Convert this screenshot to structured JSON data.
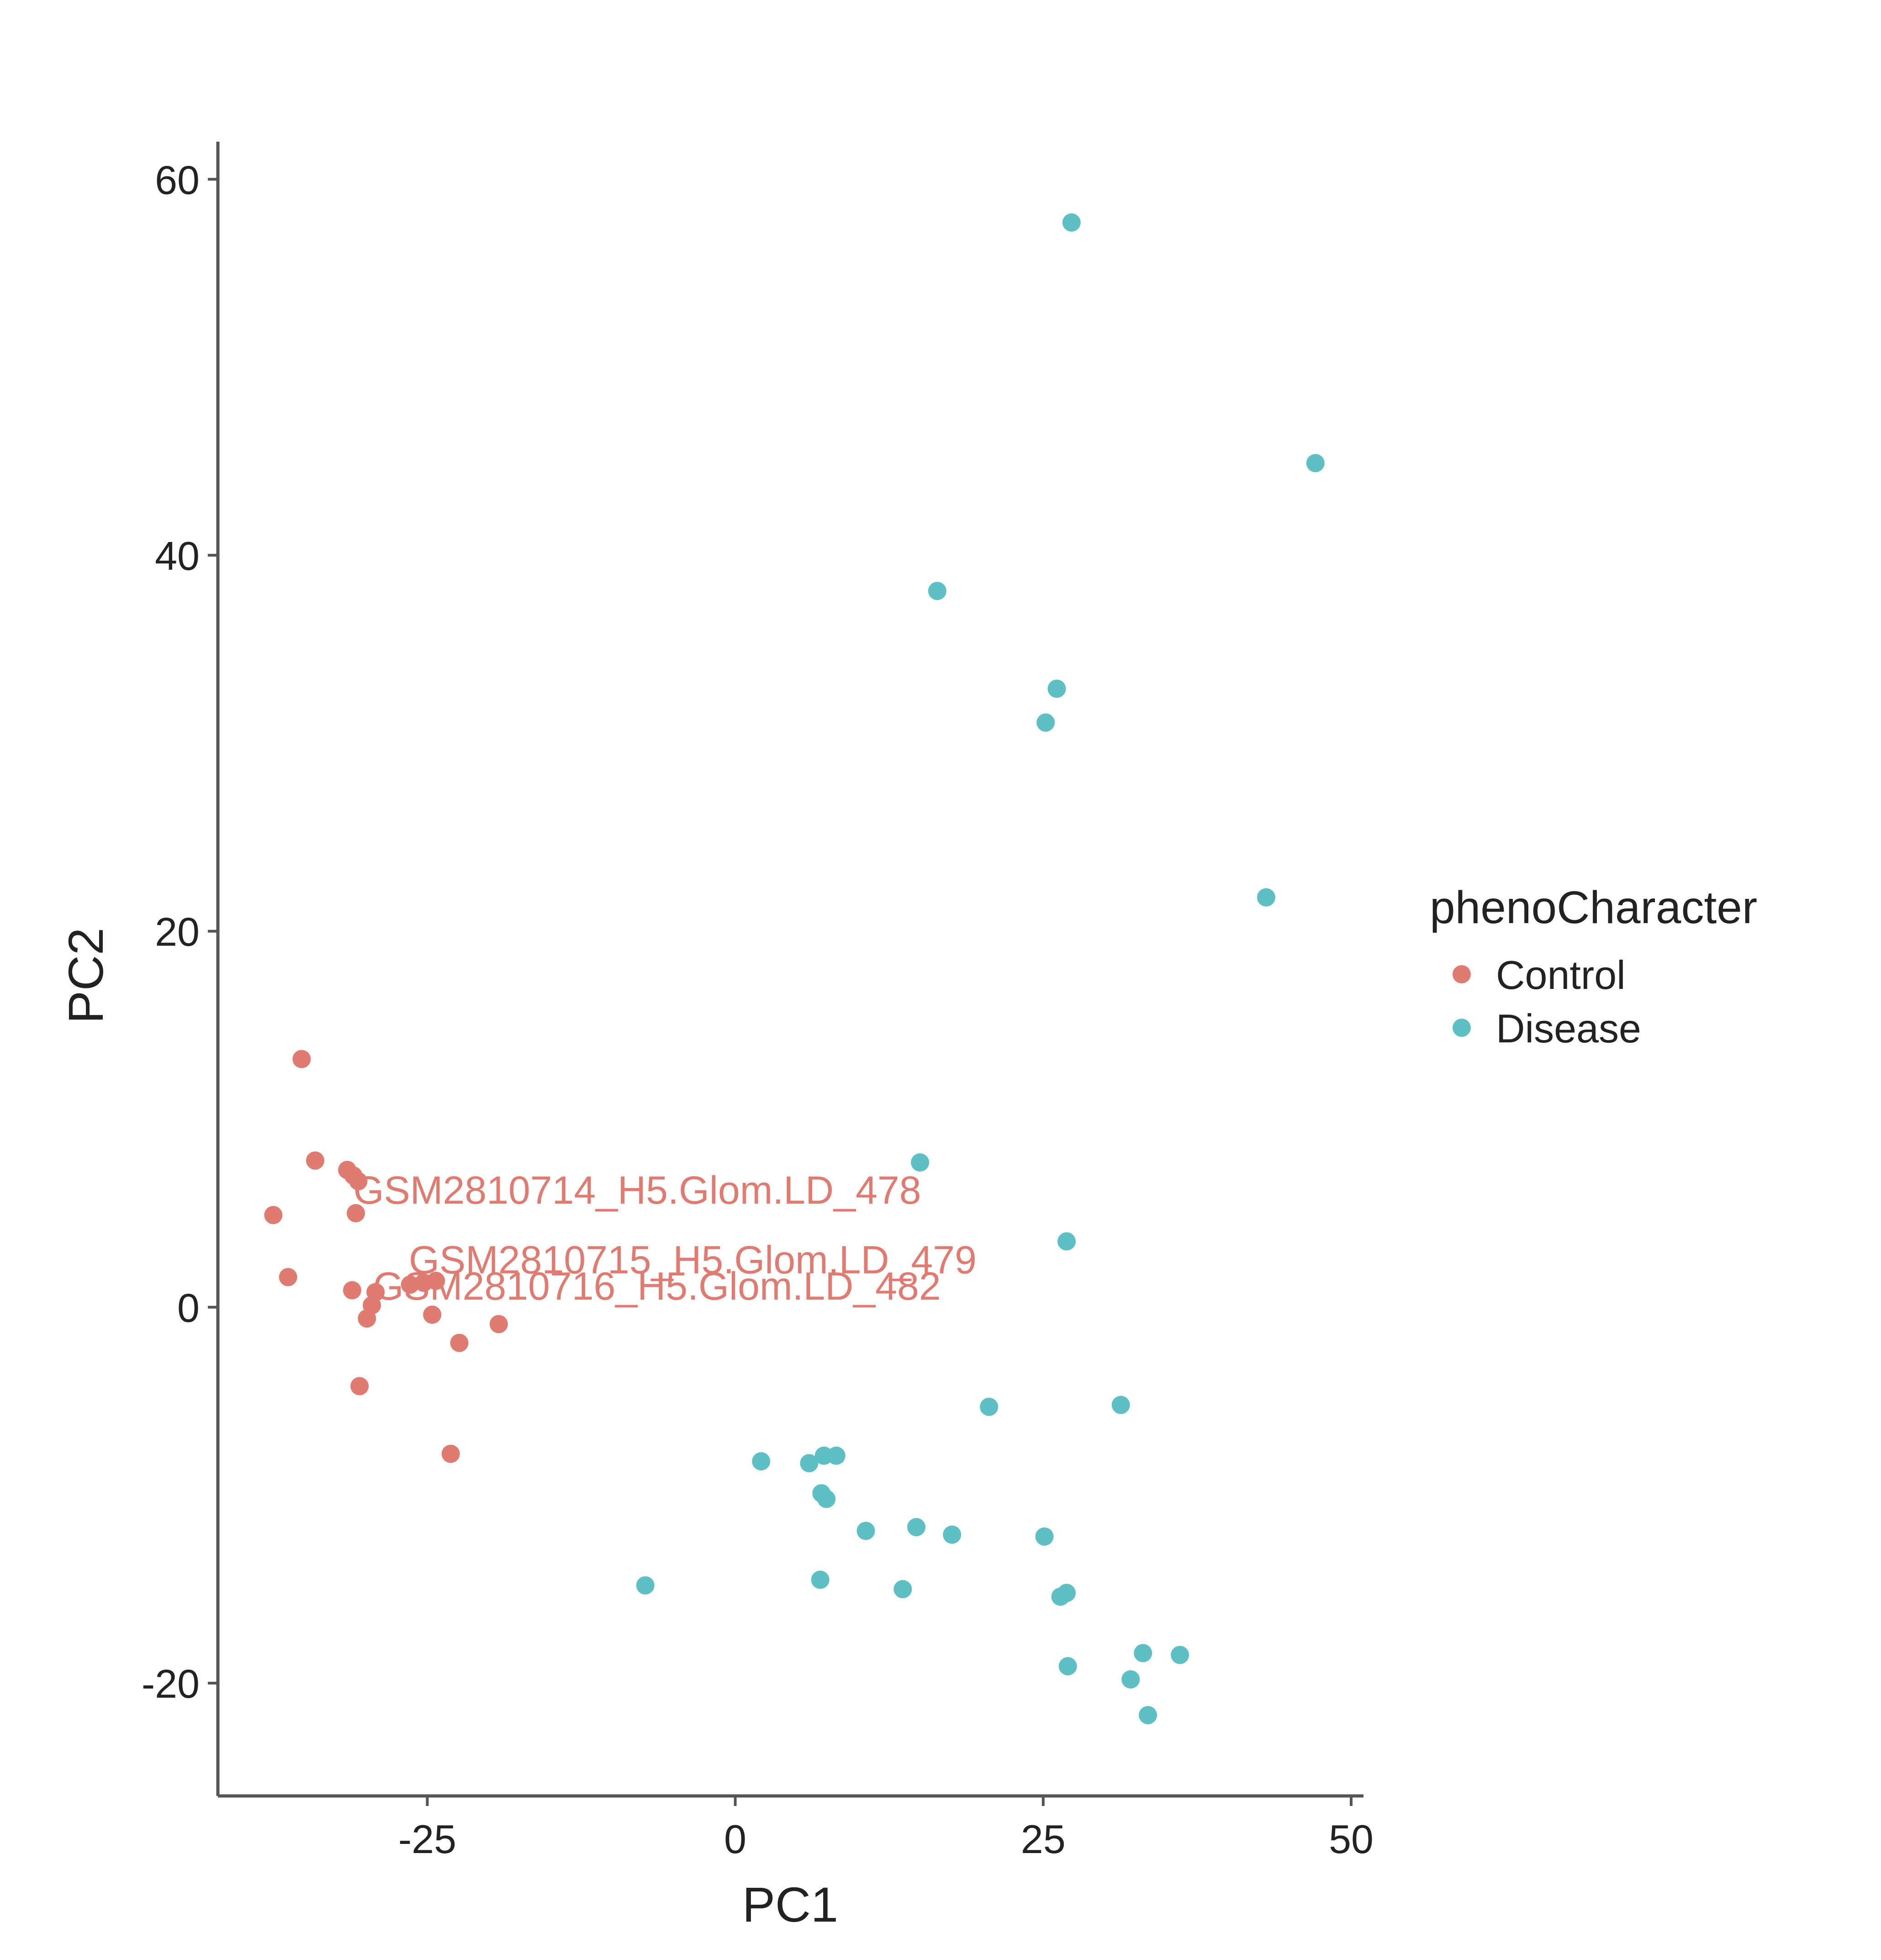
{
  "chart_data": {
    "type": "scatter",
    "title": "",
    "xlabel": "PC1",
    "ylabel": "PC2",
    "xlim": [
      -42,
      51
    ],
    "ylim": [
      -26,
      62
    ],
    "xticks": [
      -25,
      0,
      25,
      50
    ],
    "yticks": [
      -20,
      0,
      20,
      40,
      60
    ],
    "grid": false,
    "legend": {
      "title": "phenoCharacter",
      "placement": "right",
      "entries": [
        "Control",
        "Disease"
      ]
    },
    "colors": {
      "Control": "#E07B72",
      "Disease": "#5EC0C4",
      "axis": "#555555",
      "text": "#222222"
    },
    "series": [
      {
        "name": "Control",
        "points": [
          {
            "x": -35.2,
            "y": 13.2
          },
          {
            "x": -34.1,
            "y": 7.8
          },
          {
            "x": -31.5,
            "y": 7.3
          },
          {
            "x": -31.0,
            "y": 7.0
          },
          {
            "x": -30.6,
            "y": 6.7
          },
          {
            "x": -37.5,
            "y": 4.9
          },
          {
            "x": -30.8,
            "y": 5.0
          },
          {
            "x": -36.3,
            "y": 1.6
          },
          {
            "x": -31.1,
            "y": 0.9
          },
          {
            "x": -29.2,
            "y": 0.8
          },
          {
            "x": -26.4,
            "y": 1.2
          },
          {
            "x": -25.3,
            "y": 1.3
          },
          {
            "x": -24.3,
            "y": 1.4
          },
          {
            "x": -29.5,
            "y": 0.1
          },
          {
            "x": -29.9,
            "y": -0.6
          },
          {
            "x": -24.6,
            "y": -0.4
          },
          {
            "x": -19.2,
            "y": -0.9
          },
          {
            "x": -22.4,
            "y": -1.9
          },
          {
            "x": -30.5,
            "y": -4.2
          },
          {
            "x": -23.1,
            "y": -7.8
          }
        ]
      },
      {
        "name": "Disease",
        "points": [
          {
            "x": 27.3,
            "y": 57.7
          },
          {
            "x": 47.1,
            "y": 44.9
          },
          {
            "x": 16.4,
            "y": 38.1
          },
          {
            "x": 26.1,
            "y": 32.9
          },
          {
            "x": 25.2,
            "y": 31.1
          },
          {
            "x": 43.1,
            "y": 21.8
          },
          {
            "x": 15.0,
            "y": 7.7
          },
          {
            "x": 26.9,
            "y": 3.5
          },
          {
            "x": 20.6,
            "y": -5.3
          },
          {
            "x": 31.3,
            "y": -5.2
          },
          {
            "x": 2.1,
            "y": -8.2
          },
          {
            "x": 6.0,
            "y": -8.3
          },
          {
            "x": 7.2,
            "y": -7.9
          },
          {
            "x": 8.2,
            "y": -7.9
          },
          {
            "x": 7.0,
            "y": -9.9
          },
          {
            "x": 7.4,
            "y": -10.2
          },
          {
            "x": 10.6,
            "y": -11.9
          },
          {
            "x": 14.7,
            "y": -11.7
          },
          {
            "x": 17.6,
            "y": -12.1
          },
          {
            "x": 25.1,
            "y": -12.2
          },
          {
            "x": -7.3,
            "y": -14.8
          },
          {
            "x": 6.9,
            "y": -14.5
          },
          {
            "x": 13.6,
            "y": -15.0
          },
          {
            "x": 26.4,
            "y": -15.4
          },
          {
            "x": 26.9,
            "y": -15.2
          },
          {
            "x": 33.1,
            "y": -18.4
          },
          {
            "x": 36.1,
            "y": -18.5
          },
          {
            "x": 27.0,
            "y": -19.1
          },
          {
            "x": 32.1,
            "y": -19.8
          },
          {
            "x": 33.5,
            "y": -21.7
          }
        ]
      }
    ],
    "annotations": [
      {
        "text": "GSM2810714_H5.Glom.LD_478",
        "x": -31.0,
        "y": 5.5,
        "color": "#E07B72"
      },
      {
        "text": "GSM2810715_H5.Glom.LD_479",
        "x": -26.5,
        "y": 1.8,
        "color": "#E07B72"
      },
      {
        "text": "GSM2810716_H5.Glom.LD_482",
        "x": -29.4,
        "y": 0.4,
        "color": "#E07B72"
      }
    ]
  }
}
